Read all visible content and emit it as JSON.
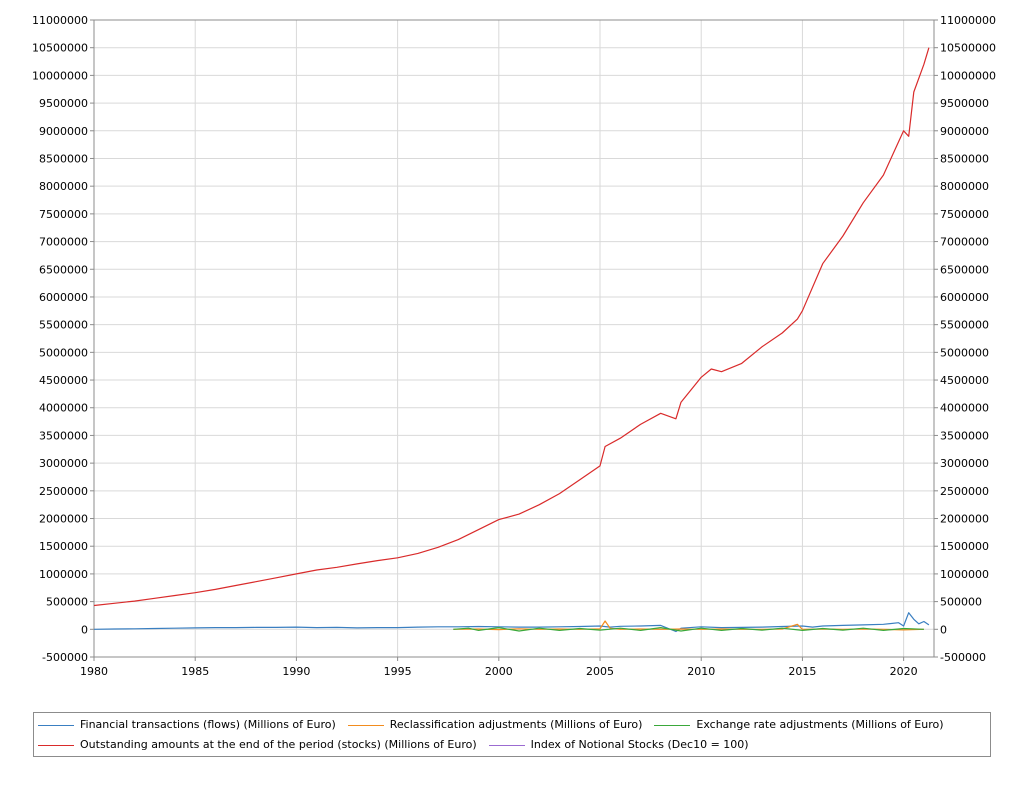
{
  "chart_data": {
    "type": "line",
    "xlim": [
      1980,
      2021.5
    ],
    "ylim": [
      -500000,
      11000000
    ],
    "x_ticks": [
      "1980",
      "1985",
      "1990",
      "1995",
      "2000",
      "2005",
      "2010",
      "2015",
      "2020"
    ],
    "y_ticks": [
      "11000000",
      "10500000",
      "10000000",
      "9500000",
      "9000000",
      "8500000",
      "8000000",
      "7500000",
      "7000000",
      "6500000",
      "6000000",
      "5500000",
      "5000000",
      "4500000",
      "4000000",
      "3500000",
      "3000000",
      "2500000",
      "2000000",
      "1500000",
      "1000000",
      "500000",
      "0",
      "-500000"
    ],
    "grid": true,
    "legend_position": "bottom",
    "series": [
      {
        "name": "Financial transactions (flows) (Millions of Euro)",
        "color": "#3a7fc1",
        "x": [
          1980.0,
          1981.0,
          1982.0,
          1983.0,
          1984.0,
          1985.0,
          1986.0,
          1987.0,
          1988.0,
          1989.0,
          1990.0,
          1991.0,
          1992.0,
          1993.0,
          1994.0,
          1995.0,
          1996.0,
          1997.0,
          1998.0,
          1999.0,
          2000.0,
          2001.0,
          2002.0,
          2003.0,
          2004.0,
          2005.0,
          2005.5,
          2006.0,
          2007.0,
          2008.0,
          2008.75,
          2009.0,
          2010.0,
          2011.0,
          2012.0,
          2013.0,
          2014.0,
          2015.0,
          2015.5,
          2016.0,
          2017.0,
          2018.0,
          2019.0,
          2019.75,
          2020.0,
          2020.25,
          2020.5,
          2020.75,
          2021.0,
          2021.25
        ],
        "y": [
          0,
          5000,
          10000,
          15000,
          20000,
          25000,
          30000,
          30000,
          35000,
          35000,
          40000,
          30000,
          35000,
          25000,
          30000,
          30000,
          40000,
          45000,
          45000,
          50000,
          45000,
          40000,
          40000,
          45000,
          50000,
          60000,
          40000,
          55000,
          60000,
          70000,
          -40000,
          20000,
          45000,
          30000,
          35000,
          40000,
          50000,
          60000,
          40000,
          60000,
          70000,
          80000,
          90000,
          120000,
          60000,
          300000,
          180000,
          100000,
          140000,
          80000
        ]
      },
      {
        "name": "Reclassification adjustments (Millions of Euro)",
        "color": "#f28c1e",
        "x": [
          1997.75,
          1999.0,
          2000.0,
          2001.0,
          2002.0,
          2003.0,
          2004.0,
          2005.0,
          2005.25,
          2005.5,
          2006.0,
          2007.0,
          2008.0,
          2009.0,
          2010.0,
          2011.0,
          2012.0,
          2013.0,
          2014.0,
          2014.75,
          2015.0,
          2016.0,
          2017.0,
          2018.0,
          2019.0,
          2020.0,
          2021.0
        ],
        "y": [
          0,
          5000,
          -5000,
          10000,
          0,
          5000,
          0,
          10000,
          150000,
          20000,
          0,
          5000,
          0,
          5000,
          0,
          5000,
          0,
          0,
          5000,
          90000,
          0,
          5000,
          0,
          5000,
          0,
          -10000,
          0
        ]
      },
      {
        "name": "Exchange rate adjustments (Millions of Euro)",
        "color": "#3aa83a",
        "x": [
          1997.75,
          1998.5,
          1999.0,
          2000.0,
          2001.0,
          2002.0,
          2003.0,
          2004.0,
          2005.0,
          2006.0,
          2007.0,
          2008.0,
          2009.0,
          2010.0,
          2011.0,
          2012.0,
          2013.0,
          2014.0,
          2015.0,
          2016.0,
          2017.0,
          2018.0,
          2019.0,
          2020.0,
          2021.0
        ],
        "y": [
          0,
          20000,
          -20000,
          30000,
          -30000,
          20000,
          -20000,
          15000,
          -15000,
          20000,
          -20000,
          30000,
          -30000,
          20000,
          -20000,
          15000,
          -15000,
          20000,
          -20000,
          15000,
          -15000,
          20000,
          -20000,
          15000,
          0
        ]
      },
      {
        "name": "Outstanding amounts at the end of the period (stocks) (Millions of Euro)",
        "color": "#d92b2b",
        "x": [
          1980.0,
          1981.0,
          1982.0,
          1983.0,
          1984.0,
          1985.0,
          1986.0,
          1987.0,
          1988.0,
          1989.0,
          1990.0,
          1991.0,
          1992.0,
          1993.0,
          1994.0,
          1995.0,
          1996.0,
          1997.0,
          1998.0,
          1999.0,
          2000.0,
          2001.0,
          2002.0,
          2003.0,
          2004.0,
          2005.0,
          2005.25,
          2006.0,
          2007.0,
          2008.0,
          2008.75,
          2009.0,
          2010.0,
          2010.5,
          2011.0,
          2012.0,
          2013.0,
          2014.0,
          2014.75,
          2015.0,
          2016.0,
          2017.0,
          2018.0,
          2019.0,
          2019.5,
          2020.0,
          2020.25,
          2020.5,
          2021.0,
          2021.25
        ],
        "y": [
          430000,
          470000,
          510000,
          560000,
          610000,
          660000,
          720000,
          790000,
          860000,
          930000,
          1000000,
          1070000,
          1120000,
          1180000,
          1240000,
          1290000,
          1370000,
          1480000,
          1620000,
          1800000,
          1980000,
          2080000,
          2250000,
          2450000,
          2700000,
          2950000,
          3300000,
          3450000,
          3700000,
          3900000,
          3800000,
          4100000,
          4550000,
          4700000,
          4650000,
          4800000,
          5100000,
          5350000,
          5600000,
          5750000,
          6600000,
          7100000,
          7700000,
          8200000,
          8600000,
          9000000,
          8900000,
          9700000,
          10200000,
          10500000
        ]
      },
      {
        "name": "Index of Notional Stocks (Dec10 = 100)",
        "color": "#9b6bd1",
        "x": [],
        "y": []
      }
    ]
  }
}
